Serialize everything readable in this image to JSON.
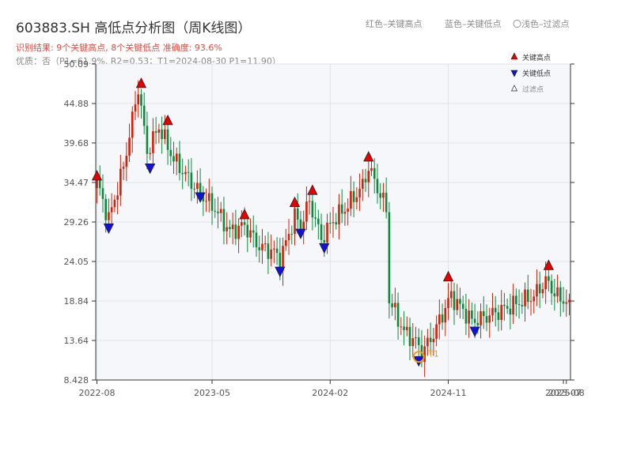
{
  "title": "603883.SH 高低点分析图（周K线图）",
  "subtitle": "识别结果: 9个关键高点, 8个关键低点  准确度: 93.6%",
  "subtitle2": "优质：否（P1=61.9%, R2=0.53；T1=2024-08-30 P1=11.90）",
  "top_legend": [
    {
      "label": "红色–关键高点"
    },
    {
      "label": "蓝色–关键低点"
    },
    {
      "label": "〇浅色–过滤点"
    }
  ],
  "colors": {
    "up": "#d81e06",
    "down": "#0a8a3a",
    "high_marker": "#e60000",
    "low_marker": "#1010e0",
    "t1_marker": "#f39c12",
    "plot_bg": "#f5f7fa",
    "grid": "#dfe3ea",
    "axis": "#333333"
  },
  "chart_data": {
    "type": "candlestick",
    "ylim": [
      8.428,
      50.09
    ],
    "y_ticks": [
      8.428,
      13.64,
      18.84,
      24.05,
      29.26,
      34.47,
      39.68,
      44.88,
      50.09
    ],
    "y_tick_labels": [
      "8.428",
      "13.64",
      "18.84",
      "24.05",
      "29.26",
      "34.47",
      "39.68",
      "44.88",
      "50.09"
    ],
    "x_tick_labels": [
      "2022-08",
      "2023-05",
      "2024-02",
      "2024-11",
      "2025-07",
      "2025-08"
    ],
    "x_tick_positions": [
      0,
      39,
      79,
      119,
      158,
      159
    ],
    "n_weeks": 161,
    "anchors": [
      [
        0,
        34.5
      ],
      [
        4,
        29.6
      ],
      [
        9,
        36.5
      ],
      [
        14,
        47.0
      ],
      [
        17,
        38.5
      ],
      [
        21,
        41.8
      ],
      [
        26,
        37.5
      ],
      [
        34,
        33.5
      ],
      [
        40,
        31.0
      ],
      [
        45,
        28.0
      ],
      [
        50,
        28.8
      ],
      [
        55,
        26.0
      ],
      [
        60,
        25.3
      ],
      [
        62,
        24.2
      ],
      [
        67,
        30.0
      ],
      [
        69,
        28.8
      ],
      [
        72,
        32.0
      ],
      [
        76,
        27.0
      ],
      [
        80,
        29.5
      ],
      [
        84,
        31.0
      ],
      [
        90,
        34.0
      ],
      [
        92,
        36.5
      ],
      [
        98,
        31.0
      ],
      [
        99,
        19.0
      ],
      [
        104,
        14.8
      ],
      [
        108,
        13.5
      ],
      [
        110,
        11.9
      ],
      [
        114,
        14.5
      ],
      [
        119,
        18.8
      ],
      [
        120,
        19.5
      ],
      [
        127,
        16.2
      ],
      [
        130,
        16.5
      ],
      [
        138,
        17.8
      ],
      [
        142,
        18.5
      ],
      [
        148,
        19.5
      ],
      [
        152,
        21.5
      ],
      [
        157,
        19.0
      ],
      [
        160,
        19.0
      ]
    ],
    "key_highs": [
      {
        "week": 0,
        "price": 35.3
      },
      {
        "week": 15,
        "price": 47.5
      },
      {
        "week": 24,
        "price": 42.6
      },
      {
        "week": 50,
        "price": 30.2
      },
      {
        "week": 67,
        "price": 31.8
      },
      {
        "week": 73,
        "price": 33.4
      },
      {
        "week": 92,
        "price": 37.8
      },
      {
        "week": 119,
        "price": 22.0
      },
      {
        "week": 153,
        "price": 23.5
      }
    ],
    "key_lows": [
      {
        "week": 4,
        "price": 28.5
      },
      {
        "week": 18,
        "price": 36.4
      },
      {
        "week": 35,
        "price": 32.6
      },
      {
        "week": 62,
        "price": 22.8
      },
      {
        "week": 69,
        "price": 27.8
      },
      {
        "week": 77,
        "price": 25.9
      },
      {
        "week": 128,
        "price": 14.9
      },
      {
        "week": 109,
        "price": 11.0
      }
    ],
    "t1_point": {
      "week": 109,
      "price": 11.9,
      "label": "T1"
    },
    "legend": [
      {
        "label": "关键高点",
        "kind": "high"
      },
      {
        "label": "关键低点",
        "kind": "low"
      },
      {
        "label": "过滤点",
        "kind": "filtered"
      }
    ]
  }
}
